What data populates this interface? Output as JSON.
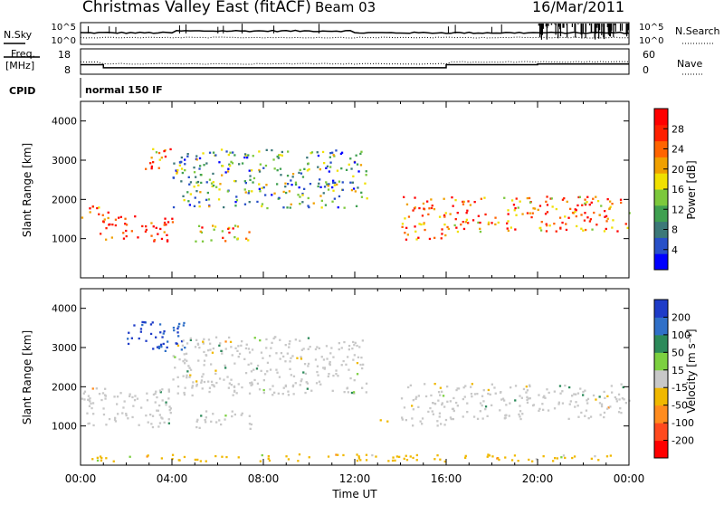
{
  "header": {
    "title": "Christmas Valley East (fitACF)",
    "beam": "Beam 03",
    "date": "16/Mar/2011"
  },
  "noise_panel": {
    "left_label": "N.Sky",
    "right_label": "N.Search",
    "left_ticks": [
      "10^5",
      "10^0"
    ],
    "right_ticks": [
      "10^5",
      "10^0"
    ]
  },
  "freq_panel": {
    "left_label_1": "Freq.",
    "left_label_2": "[MHz]",
    "right_label": "Nave",
    "left_ticks": [
      "18",
      "8"
    ],
    "right_ticks": [
      "60",
      "0"
    ]
  },
  "cpid": {
    "label": "CPID",
    "program": "normal 150 IF"
  },
  "chart_data": [
    {
      "type": "heatmap",
      "name": "power",
      "ylabel": "Slant Range [km]",
      "xlabel": "Time UT",
      "x_ticks": [
        "00:00",
        "04:00",
        "08:00",
        "12:00",
        "16:00",
        "20:00",
        "00:00"
      ],
      "y_ticks": [
        1000,
        2000,
        3000,
        4000
      ],
      "colorbar": {
        "label": "Power [dB]",
        "ticks": [
          "4",
          "8",
          "12",
          "16",
          "20",
          "24",
          "28"
        ],
        "colors": [
          "#0000ff",
          "#2850c8",
          "#3c7878",
          "#3fa050",
          "#7cc83c",
          "#f0e000",
          "#f0a000",
          "#ff6400",
          "#ff2000",
          "#ff0000"
        ]
      },
      "features": [
        {
          "t0": 0.0,
          "t1": 1.2,
          "r0": 1400,
          "r1": 1900,
          "level": 0.8
        },
        {
          "t0": 0.8,
          "t1": 4.0,
          "r0": 950,
          "r1": 1600,
          "level": 0.85
        },
        {
          "t0": 2.8,
          "t1": 4.0,
          "r0": 2800,
          "r1": 3400,
          "level": 0.75
        },
        {
          "t0": 5.0,
          "t1": 7.5,
          "r0": 950,
          "r1": 1400,
          "level": 0.7
        },
        {
          "t0": 4.0,
          "t1": 12.5,
          "r0": 1800,
          "r1": 3300,
          "level": 0.35
        },
        {
          "t0": 14.0,
          "t1": 16.0,
          "r0": 1000,
          "r1": 2100,
          "level": 0.8
        },
        {
          "t0": 16.0,
          "t1": 24.0,
          "r0": 1200,
          "r1": 2100,
          "level": 0.75
        }
      ]
    },
    {
      "type": "heatmap",
      "name": "velocity",
      "ylabel": "Slant Range [km]",
      "xlabel": "Time UT",
      "x_ticks": [
        "00:00",
        "04:00",
        "08:00",
        "12:00",
        "16:00",
        "20:00",
        "00:00"
      ],
      "y_ticks": [
        1000,
        2000,
        3000,
        4000
      ],
      "colorbar": {
        "label": "Velocity [m s⁻¹]",
        "ticks": [
          "200",
          "100",
          "50",
          "15",
          "-15",
          "-50",
          "-100",
          "-200"
        ],
        "colors": [
          "#1e3cc8",
          "#3070c8",
          "#2c8a5a",
          "#7cd040",
          "#c8c8c8",
          "#f0b800",
          "#ff8c1e",
          "#ff4a1e",
          "#ff0000"
        ]
      },
      "features": [
        {
          "t0": 0.0,
          "t1": 4.0,
          "r0": 950,
          "r1": 2000,
          "value": 0
        },
        {
          "t0": 2.0,
          "t1": 4.6,
          "r0": 2900,
          "r1": 3700,
          "value": 150
        },
        {
          "t0": 5.0,
          "t1": 7.5,
          "r0": 950,
          "r1": 1400,
          "value": 5
        },
        {
          "t0": 4.0,
          "t1": 12.5,
          "r0": 1800,
          "r1": 3300,
          "value": 0
        },
        {
          "t0": 13.0,
          "t1": 13.6,
          "r0": 1050,
          "r1": 1200,
          "value": -40
        },
        {
          "t0": 14.0,
          "t1": 16.0,
          "r0": 1000,
          "r1": 2100,
          "value": 0
        },
        {
          "t0": 16.0,
          "t1": 24.0,
          "r0": 1200,
          "r1": 2100,
          "value": 0
        },
        {
          "t0": 0.0,
          "t1": 24.0,
          "r0": 120,
          "r1": 300,
          "value": -40
        }
      ]
    }
  ]
}
